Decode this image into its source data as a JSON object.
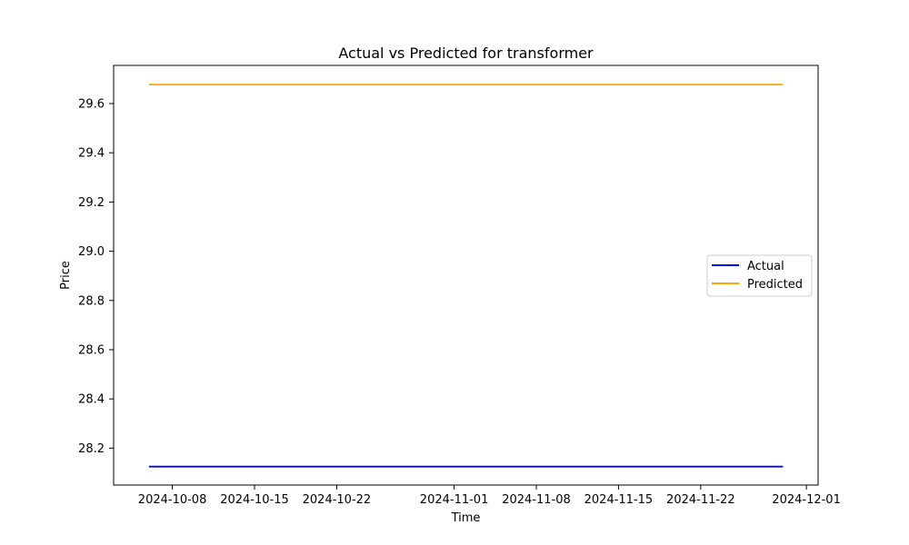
{
  "chart_data": {
    "type": "line",
    "title": "Actual vs Predicted for transformer",
    "xlabel": "Time",
    "ylabel": "Price",
    "x": [
      "2024-10-06",
      "2024-11-29"
    ],
    "series": [
      {
        "name": "Actual",
        "color": "#0000ff",
        "values": [
          28.125,
          28.125
        ]
      },
      {
        "name": "Predicted",
        "color": "#ffa500",
        "values": [
          29.677,
          29.677
        ]
      }
    ],
    "xlim": [
      "2024-10-03",
      "2024-12-02"
    ],
    "ylim": [
      28.05,
      29.755
    ],
    "x_ticks": [
      "2024-10-08",
      "2024-10-15",
      "2024-10-22",
      "2024-11-01",
      "2024-11-08",
      "2024-11-15",
      "2024-11-22",
      "2024-12-01"
    ],
    "y_ticks": [
      "28.2",
      "28.4",
      "28.6",
      "28.8",
      "29.0",
      "29.2",
      "29.4",
      "29.6"
    ],
    "grid": false,
    "legend_position": "center-right"
  }
}
